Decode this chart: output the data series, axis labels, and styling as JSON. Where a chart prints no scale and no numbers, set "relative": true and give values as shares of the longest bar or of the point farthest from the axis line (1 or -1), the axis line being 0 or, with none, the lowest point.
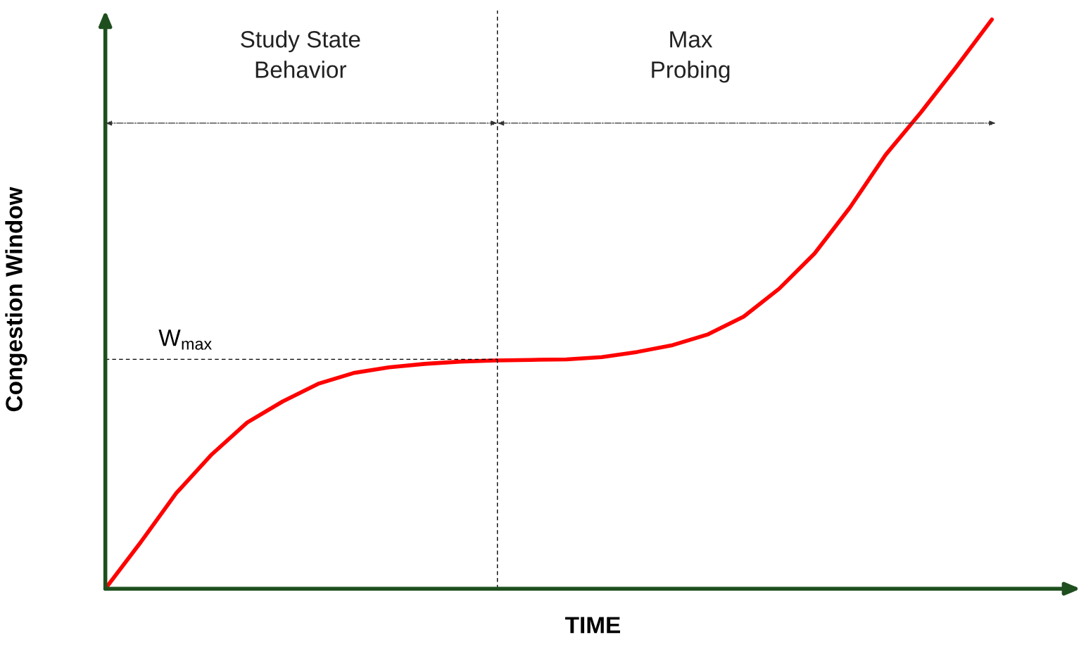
{
  "chart_data": {
    "type": "line",
    "relative": true,
    "xlabel": "TIME",
    "ylabel": "Congestion Window",
    "categories": [
      null,
      null,
      null,
      null,
      null,
      null,
      null,
      null,
      null,
      null,
      null,
      null,
      null,
      null,
      null,
      null,
      null,
      null,
      null,
      null,
      null,
      null,
      null,
      null,
      null,
      null
    ],
    "series": [
      {
        "color": "#ff0000",
        "values": [
          0,
          0.082,
          0.168,
          0.236,
          0.292,
          0.329,
          0.36,
          0.379,
          0.389,
          0.395,
          0.399,
          0.401,
          0.402,
          0.403,
          0.407,
          0.416,
          0.428,
          0.447,
          0.478,
          0.527,
          0.589,
          0.67,
          0.762,
          0.837,
          0.917,
          1.0
        ]
      }
    ],
    "ref_lines": [
      {
        "axis": "y",
        "value": 0.403,
        "label": "W$_{max}$",
        "color": "#000000",
        "line_style": "dashed"
      }
    ],
    "annotations": [
      "Study State\nBehavior",
      "Max\nProbing"
    ],
    "grid": false,
    "legend": false,
    "marker": "none",
    "line_style": "solid"
  }
}
